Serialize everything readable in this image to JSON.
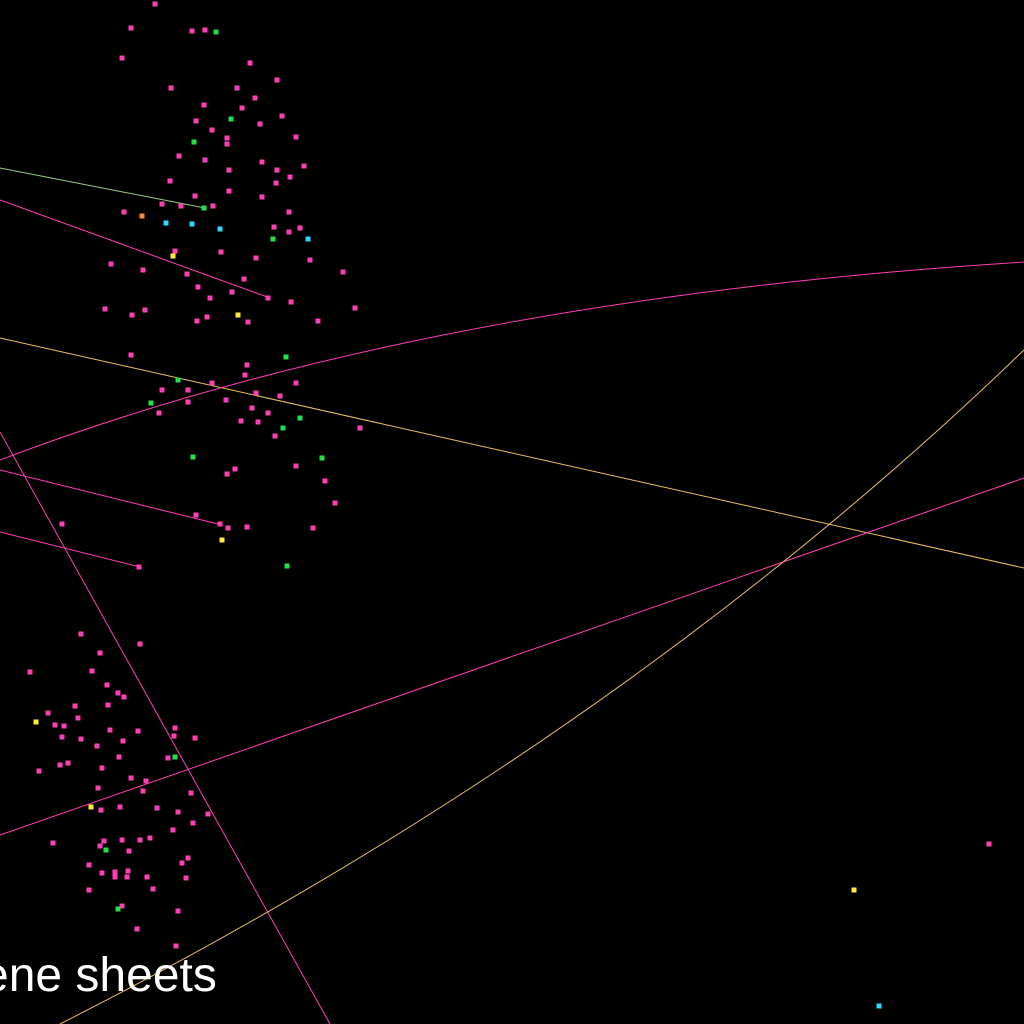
{
  "caption": "ene sheets",
  "colors": {
    "background": "#000000",
    "magenta": "#ff3fb4",
    "green": "#22e04a",
    "cyan": "#2fd8ff",
    "yellow": "#ffee33",
    "orange": "#ff8c3a",
    "track_yellow": "#e8c060",
    "track_green": "#9acd80"
  }
}
